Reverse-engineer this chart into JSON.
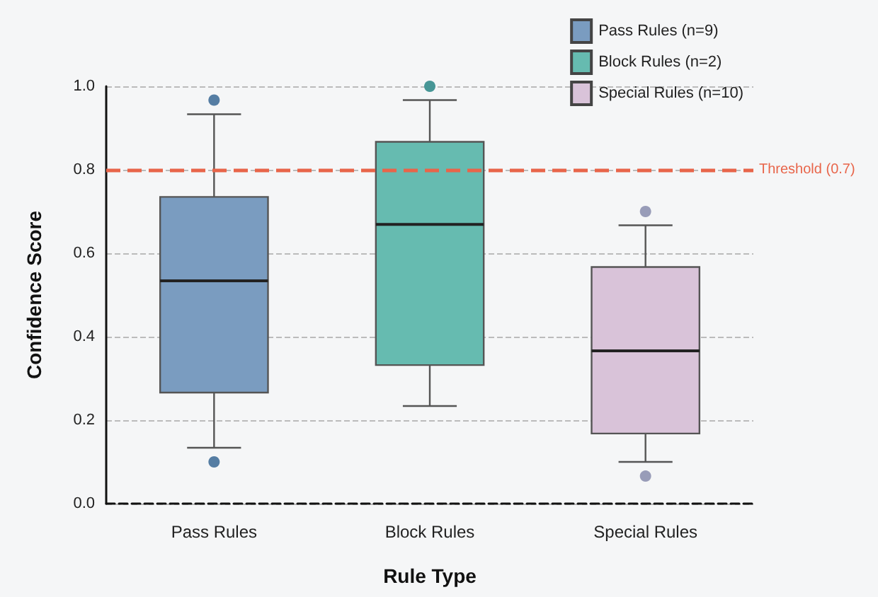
{
  "chart_data": {
    "type": "box",
    "xlabel": "Rule Type",
    "ylabel": "Confidence Score",
    "categories": [
      "Pass Rules",
      "Block Rules",
      "Special Rules"
    ],
    "ylim": [
      0,
      1.0
    ],
    "yticks": [
      {
        "value": 0,
        "label": "0.0"
      },
      0.2,
      0.4,
      0.6,
      0.8,
      {
        "value": 1,
        "label": "1.0"
      }
    ],
    "grid": "y",
    "legend": "top right",
    "series": [
      {
        "name": "Pass Rules (n=9)",
        "color": "#7a9cc0",
        "boxes": [
          {
            "low": 0.134,
            "q1": 0.266,
            "median": 0.534,
            "q3": 0.735,
            "high": 0.933,
            "outliers": [
              0.967,
              0.1
            ]
          },
          null,
          null
        ]
      },
      {
        "name": "Block Rules (n=2)",
        "color": "#66bbb0",
        "boxes": [
          null,
          {
            "low": 0.234,
            "q1": 0.332,
            "median": 0.669,
            "q3": 0.867,
            "high": 0.967,
            "outliers": [
              1.0
            ]
          },
          null
        ]
      },
      {
        "name": "Special Rules (n=10)",
        "color": "#d9c3d9",
        "boxes": [
          null,
          null,
          {
            "low": 0.1,
            "q1": 0.168,
            "median": 0.366,
            "q3": 0.567,
            "high": 0.667,
            "outliers": [
              0.7,
              0.066
            ]
          }
        ]
      }
    ],
    "ref_lines": [
      {
        "axis": "y",
        "value": 0.8,
        "label": "Threshold (0.7)",
        "color": "#e8654a",
        "line_style": "dashed"
      }
    ]
  }
}
